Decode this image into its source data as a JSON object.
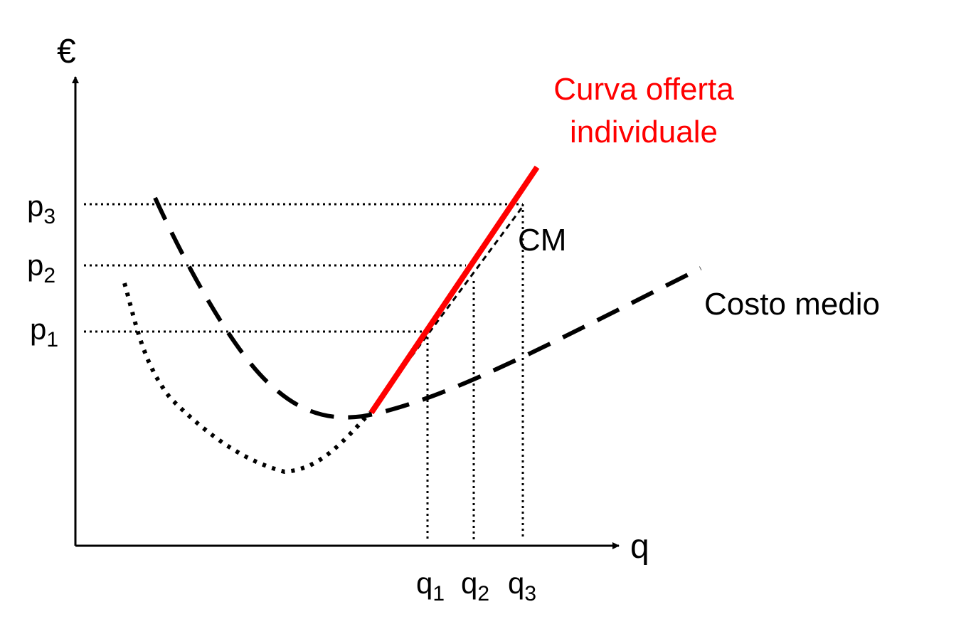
{
  "diagram": {
    "y_axis_symbol": "€",
    "x_axis_symbol": "q",
    "price_labels": [
      {
        "base": "p",
        "sub": "3"
      },
      {
        "base": "p",
        "sub": "2"
      },
      {
        "base": "p",
        "sub": "1"
      }
    ],
    "quantity_labels": [
      {
        "base": "q",
        "sub": "1"
      },
      {
        "base": "q",
        "sub": "2"
      },
      {
        "base": "q",
        "sub": "3"
      }
    ],
    "supply_label_line1": "Curva offerta",
    "supply_label_line2": "individuale",
    "marginal_cost_label": "CM",
    "average_cost_label": "Costo medio",
    "colors": {
      "supply": "#ff0000",
      "curves": "#000000",
      "axes": "#000000"
    }
  }
}
